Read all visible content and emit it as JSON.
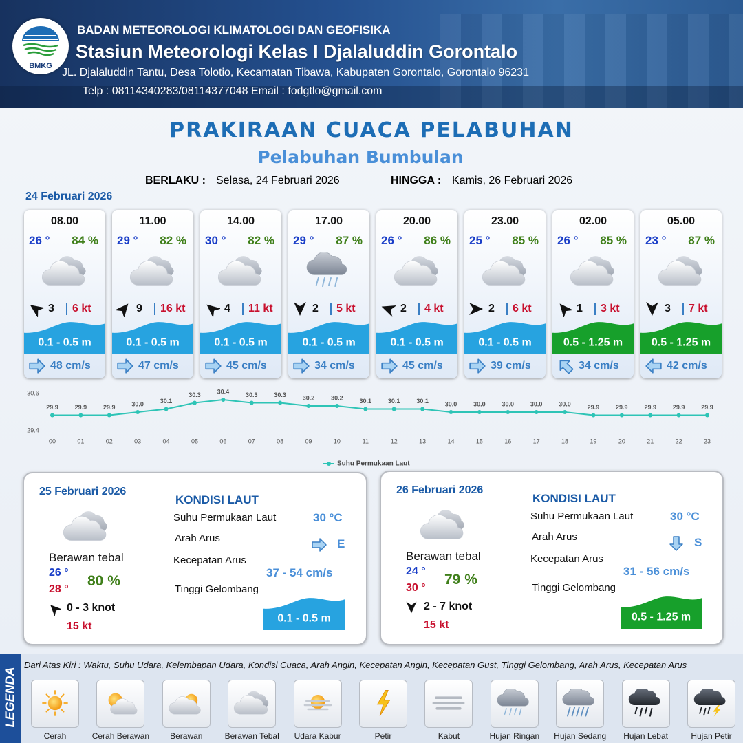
{
  "header": {
    "logo_text": "BMKG",
    "agency": "BADAN METEOROLOGI KLIMATOLOGI DAN GEOFISIKA",
    "station": "Stasiun Meteorologi Kelas I Djalaluddin Gorontalo",
    "address": "JL. Djalaluddin Tantu, Desa Tolotio, Kecamatan Tibawa, Kabupaten Gorontalo, Gorontalo 96231",
    "contact": "Telp : 08114340283/08114377048 Email : fodgtlo@gmail.com"
  },
  "title": "PRAKIRAAN CUACA PELABUHAN",
  "subtitle": "Pelabuhan Bumbulan",
  "validity": {
    "from_label": "BERLAKU :",
    "from": "Selasa, 24 Februari 2026",
    "to_label": "HINGGA :",
    "to": "Kamis, 26 Februari 2026"
  },
  "day1_date": "24 Februari 2026",
  "forecasts": [
    {
      "time": "08.00",
      "temp": "26 °",
      "humidity": "84 %",
      "wind": "3",
      "gust": "6 kt",
      "wave": "0.1 - 0.5 m",
      "current": "48 cm/s"
    },
    {
      "time": "11.00",
      "temp": "29 °",
      "humidity": "82 %",
      "wind": "9",
      "gust": "16 kt",
      "wave": "0.1 - 0.5 m",
      "current": "47 cm/s"
    },
    {
      "time": "14.00",
      "temp": "30 °",
      "humidity": "82 %",
      "wind": "4",
      "gust": "11 kt",
      "wave": "0.1 - 0.5 m",
      "current": "45 cm/s"
    },
    {
      "time": "17.00",
      "temp": "29 °",
      "humidity": "87 %",
      "wind": "2",
      "gust": "5 kt",
      "wave": "0.1 - 0.5 m",
      "current": "34 cm/s"
    },
    {
      "time": "20.00",
      "temp": "26 °",
      "humidity": "86 %",
      "wind": "2",
      "gust": "4 kt",
      "wave": "0.1 - 0.5 m",
      "current": "45 cm/s"
    },
    {
      "time": "23.00",
      "temp": "25 °",
      "humidity": "85 %",
      "wind": "2",
      "gust": "6 kt",
      "wave": "0.1 - 0.5 m",
      "current": "39 cm/s"
    },
    {
      "time": "02.00",
      "temp": "26 °",
      "humidity": "85 %",
      "wind": "1",
      "gust": "3 kt",
      "wave": "0.5 - 1.25 m",
      "current": "34 cm/s"
    },
    {
      "time": "05.00",
      "temp": "23 °",
      "humidity": "87 %",
      "wind": "3",
      "gust": "7 kt",
      "wave": "0.5 - 1.25 m",
      "current": "42 cm/s"
    }
  ],
  "chart_data": {
    "type": "line",
    "categories": [
      "00",
      "01",
      "02",
      "03",
      "04",
      "05",
      "06",
      "07",
      "08",
      "09",
      "10",
      "11",
      "12",
      "13",
      "14",
      "15",
      "16",
      "17",
      "18",
      "19",
      "20",
      "21",
      "22",
      "23"
    ],
    "series": [
      {
        "name": "Suhu Permukaan Laut",
        "color": "#2ec4b6",
        "values": [
          29.9,
          29.9,
          29.9,
          30.0,
          30.1,
          30.3,
          30.4,
          30.3,
          30.3,
          30.2,
          30.2,
          30.1,
          30.1,
          30.1,
          30.0,
          30.0,
          30.0,
          30.0,
          30.0,
          29.9,
          29.9,
          29.9,
          29.9,
          29.9
        ],
        "value_labels": [
          "29.9",
          "29.9",
          "29.9",
          "30.0",
          "30.1",
          "30.3",
          "30.4",
          "30.3",
          "30.3",
          "30.2",
          "30.2",
          "30.1",
          "30.1",
          "30.1",
          "30.0",
          "30.0",
          "30.0",
          "30.0",
          "30.0",
          "29.9",
          "29.9",
          "29.9",
          "29.9",
          "29.9"
        ]
      }
    ],
    "ylim": [
      29.4,
      30.6
    ],
    "yticks": [
      29.4,
      30.6
    ],
    "legend": "bottom"
  },
  "day2": {
    "date": "25 Februari 2026",
    "condition": "Berawan tebal",
    "temp_min": "26 °",
    "temp_max": "28 °",
    "humidity": "80 %",
    "wind": "0 - 3 knot",
    "gust": "15 kt",
    "sea_heading": "KONDISI LAUT",
    "sst_label": "Suhu Permukaan Laut",
    "sst": "30 °C",
    "current_dir_label": "Arah Arus",
    "current_dir": "E",
    "current_speed_label": "Kecepatan Arus",
    "current_speed": "37 - 54 cm/s",
    "wave_label": "Tinggi Gelombang",
    "wave": "0.1 - 0.5 m"
  },
  "day3": {
    "date": "26 Februari 2026",
    "condition": "Berawan tebal",
    "temp_min": "24 °",
    "temp_max": "30 °",
    "humidity": "79 %",
    "wind": "2 - 7 knot",
    "gust": "15 kt",
    "sea_heading": "KONDISI LAUT",
    "sst_label": "Suhu Permukaan Laut",
    "sst": "30 °C",
    "current_dir_label": "Arah Arus",
    "current_dir": "S",
    "current_speed_label": "Kecepatan Arus",
    "current_speed": "31 - 56 cm/s",
    "wave_label": "Tinggi Gelombang",
    "wave": "0.5 - 1.25 m"
  },
  "legend": {
    "title": "LEGENDA",
    "description": "Dari Atas Kiri : Waktu, Suhu Udara, Kelembapan Udara, Kondisi Cuaca, Arah Angin, Kecepatan Angin, Kecepatan Gust, Tinggi Gelombang, Arah Arus, Kecepatan Arus",
    "items": [
      "Cerah",
      "Cerah Berawan",
      "Berawan",
      "Berawan Tebal",
      "Udara Kabur",
      "Petir",
      "Kabut",
      "Hujan Ringan",
      "Hujan Sedang",
      "Hujan Lebat",
      "Hujan Petir"
    ]
  }
}
